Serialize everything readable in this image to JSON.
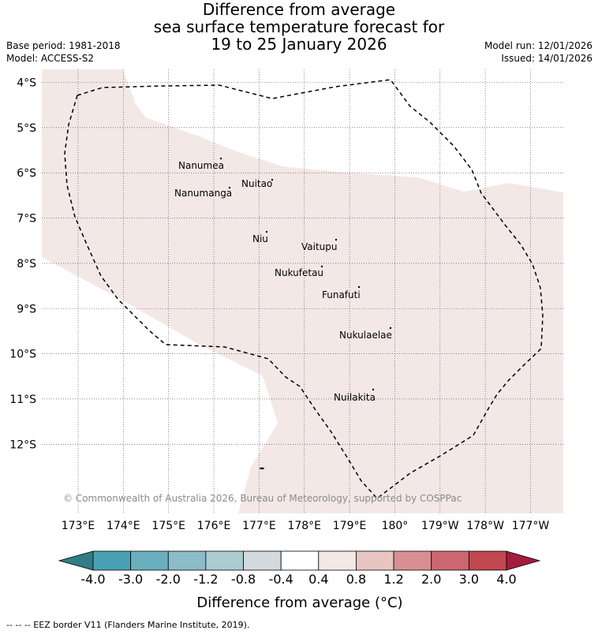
{
  "title": {
    "line1": "Difference from average",
    "line2": "sea surface temperature forecast for",
    "line3": "19 to 25 January 2026"
  },
  "info": {
    "base_period": "Base period: 1981-2018",
    "model": "Model: ACCESS-S2",
    "model_run": "Model run: 12/01/2026",
    "issued": "Issued: 14/01/2026"
  },
  "map": {
    "lat_labels": [
      "4°S",
      "5°S",
      "6°S",
      "7°S",
      "8°S",
      "9°S",
      "10°S",
      "11°S",
      "12°S"
    ],
    "lon_labels": [
      "173°E",
      "174°E",
      "175°E",
      "176°E",
      "177°E",
      "178°E",
      "179°E",
      "180°",
      "179°W",
      "178°W",
      "177°W"
    ],
    "islands": [
      {
        "name": "Nanumea"
      },
      {
        "name": "Nuitao"
      },
      {
        "name": "Nanumanga"
      },
      {
        "name": "Niu"
      },
      {
        "name": "Vaitupu"
      },
      {
        "name": "Nukufetau"
      },
      {
        "name": "Funafuti"
      },
      {
        "name": "Nukulaelae"
      },
      {
        "name": "Nuilakita"
      }
    ],
    "copyright": "© Commonwealth of Australia 2026, Bureau of Meteorology, supported by COSPPac"
  },
  "colorbar": {
    "ticks": [
      "-4.0",
      "-3.0",
      "-2.0",
      "-1.2",
      "-0.8",
      "-0.4",
      "0.4",
      "0.8",
      "1.2",
      "2.0",
      "3.0",
      "4.0"
    ],
    "colors": {
      "under": "#2f7d86",
      "bins": [
        "#4aa1b3",
        "#6aafbd",
        "#8bbcc7",
        "#abcdd1",
        "#d3d9dc",
        "#ffffff",
        "#f4e8e7",
        "#e8c5c3",
        "#d98e93",
        "#cc6671",
        "#c0474f"
      ],
      "over": "#a31c3c"
    },
    "label": "Difference from average (°C)"
  },
  "attribution": "-- -- -- EEZ border V11 (Flanders Marine Institute, 2019).",
  "colors": {
    "anomaly_fill": "#f4e8e7",
    "neutral_fill": "#ffffff"
  }
}
